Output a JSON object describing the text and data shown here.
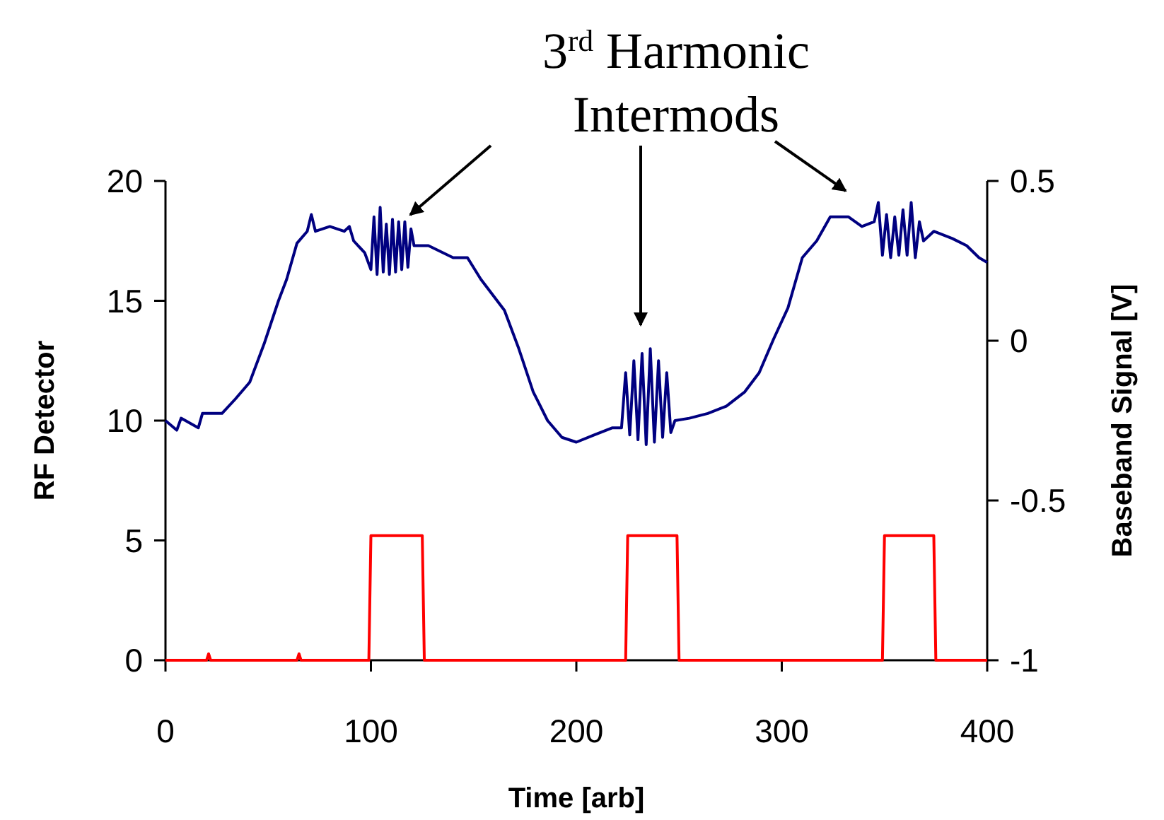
{
  "chart_data": {
    "type": "line",
    "xlabel": "Time [arb]",
    "ylabel": "RF Detector",
    "y2label": "Baseband Signal [V]",
    "annotations": [
      "3$^{rd}$  Harmonic\nIntermods"
    ],
    "xlim": [
      0,
      400
    ],
    "xticks": [
      0,
      100,
      200,
      300,
      400
    ],
    "ylim": [
      0,
      20
    ],
    "yticks": [
      0,
      5,
      10,
      15,
      20
    ],
    "y2lim": [
      -1,
      0.5
    ],
    "y2ticks": [
      -1,
      -0.5,
      0,
      0.5
    ],
    "grid": false,
    "marker": "none",
    "line_style": "solid",
    "series": [
      {
        "color": "#000080",
        "x": [
          0,
          5.5,
          7.6,
          16,
          18,
          27.5,
          34,
          41,
          48,
          55,
          59,
          64,
          69,
          71,
          73,
          80,
          87,
          89.5,
          91.6,
          97,
          100,
          101.5,
          103,
          104.5,
          106,
          107.5,
          109,
          110.5,
          112,
          113.5,
          115,
          116.5,
          118,
          119.5,
          121,
          128,
          140,
          147,
          153.5,
          165,
          172,
          179,
          186,
          193,
          200,
          208.6,
          217.6,
          222,
          224,
          226,
          228,
          230,
          232,
          234,
          236,
          238,
          240,
          242,
          244,
          246,
          248,
          255,
          264,
          273,
          282,
          289,
          296,
          303,
          310,
          317,
          323.6,
          332.5,
          339,
          345,
          347,
          349,
          351,
          353,
          355,
          357,
          359,
          361,
          363,
          365,
          367,
          369,
          374,
          383,
          390,
          396,
          400
        ],
        "values": [
          10.0,
          9.6,
          10.1,
          9.7,
          10.3,
          10.3,
          10.9,
          11.6,
          13.2,
          15.0,
          15.9,
          17.4,
          17.9,
          18.6,
          17.9,
          18.1,
          17.9,
          18.1,
          17.5,
          17.0,
          16.3,
          18.5,
          16.1,
          18.9,
          16.2,
          18.2,
          16.1,
          18.4,
          16.2,
          18.3,
          16.3,
          18.3,
          16.4,
          18.0,
          17.3,
          17.3,
          16.8,
          16.8,
          15.9,
          14.6,
          13.0,
          11.2,
          10.0,
          9.3,
          9.1,
          9.4,
          9.7,
          9.7,
          12.0,
          9.4,
          12.5,
          9.2,
          12.8,
          9.0,
          13.0,
          9.1,
          12.5,
          9.3,
          12.0,
          9.5,
          10.0,
          10.1,
          10.3,
          10.6,
          11.2,
          12.0,
          13.4,
          14.7,
          16.8,
          17.5,
          18.5,
          18.5,
          18.1,
          18.3,
          19.1,
          16.9,
          18.6,
          16.8,
          18.5,
          16.9,
          18.8,
          16.9,
          19.1,
          16.8,
          18.3,
          17.5,
          17.9,
          17.6,
          17.3,
          16.8,
          16.6
        ]
      },
      {
        "color": "#ff0000",
        "axis": "y2",
        "x": [
          0,
          20,
          21,
          22,
          64,
          65,
          66,
          99,
          100,
          125,
          126,
          224,
          225,
          249,
          250,
          349,
          350,
          374,
          375,
          400
        ],
        "values": [
          -1,
          -1,
          -0.98,
          -1,
          -1,
          -0.98,
          -1,
          -1,
          -0.61,
          -0.61,
          -1,
          -1,
          -0.61,
          -0.61,
          -1,
          -1,
          -0.61,
          -0.61,
          -1,
          -1
        ]
      }
    ]
  }
}
